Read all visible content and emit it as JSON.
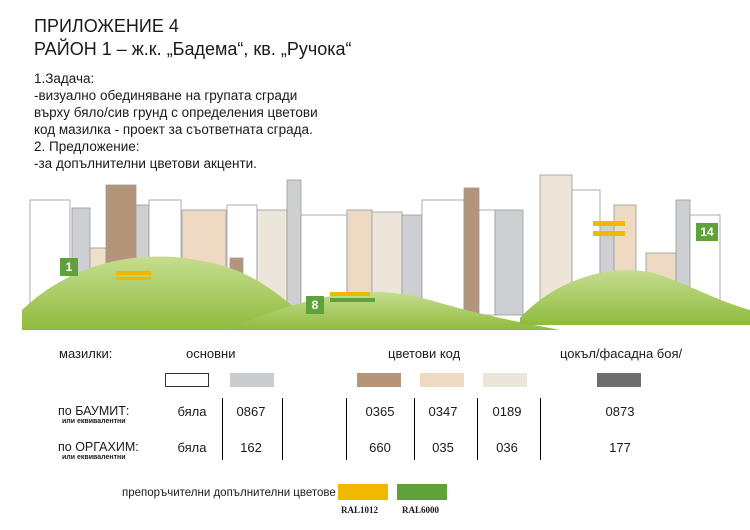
{
  "header": {
    "appendix": "ПРИЛОЖЕНИЕ 4",
    "district": "РАЙОН 1 – ж.к. „Бадема“, кв. „Ручока“"
  },
  "task": [
    "1.Задача:",
    "-визуално обединяване на групата сгради",
    "върху бяло/сив грунд с определения цветови",
    "код  мазилка - проект за съответната сграда.",
    "2. Предложение:",
    "-за  допълнителни цветови акценти."
  ],
  "badges": [
    "1",
    "8",
    "14"
  ],
  "legend": {
    "label_mazilki": "мазилки:",
    "label_osnovni": "основни",
    "label_cvetovi": "цветови код",
    "label_cokal": "цокъл/фасадна боя/",
    "swatch_colors": [
      "#ffffff",
      "#c9cccf",
      "#b5957a",
      "#eed9c3",
      "#ece6da",
      "#6d6d6f"
    ]
  },
  "rows": [
    {
      "label": "по БАУМИТ:",
      "sub": "или еквивалентни",
      "values": [
        "бяла",
        "0867",
        "0365",
        "0347",
        "0189",
        "0873"
      ]
    },
    {
      "label": "по ОРГАХИМ:",
      "sub": "или еквивалентни",
      "values": [
        "бяла",
        "162",
        "660",
        "035",
        "036",
        "177"
      ]
    }
  ],
  "recommended": {
    "label": "препоръчителни допълнителни цветове :",
    "colors": [
      {
        "code": "RAL1012",
        "hex": "#f2b800"
      },
      {
        "code": "RAL6000",
        "hex": "#5fa13a"
      }
    ]
  }
}
